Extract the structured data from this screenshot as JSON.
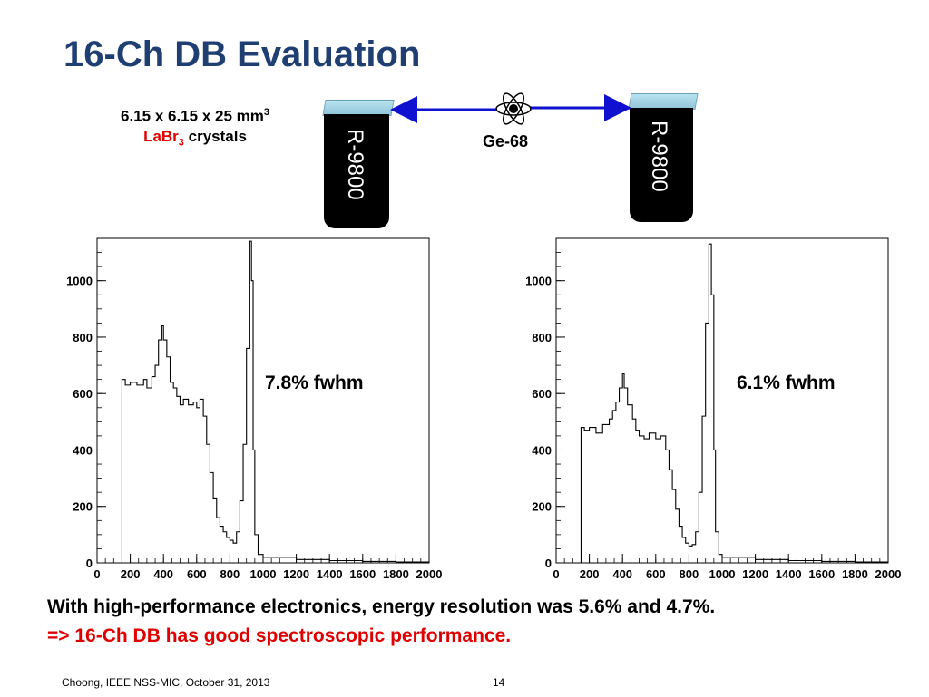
{
  "slide": {
    "title": "16-Ch DB Evaluation",
    "crystal_dims": "6.15 x 6.15 x 25 mm",
    "crystal_dims_sup": "3",
    "crystal_material": "LaBr",
    "crystal_material_sub": "3",
    "crystal_word": " crystals",
    "source_label": "Ge-68",
    "pmt_left_label": "R-9800",
    "pmt_right_label": "R-9800",
    "fwhm_left": "7.8% fwhm",
    "fwhm_right": "6.1% fwhm",
    "conclusion_line1": "With high-performance electronics, energy resolution was 5.6% and 4.7%.",
    "conclusion_line2": "=> 16-Ch DB has good spectroscopic performance.",
    "footer_text": "Choong, IEEE NSS-MIC, October 31, 2013",
    "page_number": "14",
    "colors": {
      "title": "#1f3f73",
      "accent_red": "#e00000",
      "arrow_blue": "#1010d0"
    },
    "icons": [
      "atom-icon",
      "double-arrow-icon"
    ]
  },
  "chart_data": [
    {
      "type": "histogram",
      "title": "",
      "xlabel": "",
      "ylabel": "",
      "xlim": [
        0,
        2000
      ],
      "ylim": [
        0,
        1150
      ],
      "xticks": [
        0,
        200,
        400,
        600,
        800,
        1000,
        1200,
        1400,
        1600,
        1800,
        2000
      ],
      "yticks": [
        0,
        200,
        400,
        600,
        800,
        1000
      ],
      "annotation": "7.8% fwhm",
      "points": [
        [
          0,
          0
        ],
        [
          150,
          0
        ],
        [
          150,
          650
        ],
        [
          170,
          630
        ],
        [
          200,
          640
        ],
        [
          240,
          630
        ],
        [
          280,
          650
        ],
        [
          300,
          620
        ],
        [
          330,
          660
        ],
        [
          350,
          700
        ],
        [
          370,
          790
        ],
        [
          390,
          840
        ],
        [
          400,
          790
        ],
        [
          420,
          730
        ],
        [
          440,
          640
        ],
        [
          460,
          620
        ],
        [
          480,
          590
        ],
        [
          500,
          560
        ],
        [
          520,
          580
        ],
        [
          550,
          560
        ],
        [
          580,
          570
        ],
        [
          600,
          550
        ],
        [
          620,
          580
        ],
        [
          640,
          520
        ],
        [
          660,
          420
        ],
        [
          680,
          320
        ],
        [
          700,
          230
        ],
        [
          720,
          160
        ],
        [
          740,
          130
        ],
        [
          760,
          110
        ],
        [
          780,
          90
        ],
        [
          800,
          80
        ],
        [
          820,
          70
        ],
        [
          840,
          110
        ],
        [
          860,
          220
        ],
        [
          880,
          420
        ],
        [
          900,
          760
        ],
        [
          920,
          1140
        ],
        [
          930,
          1000
        ],
        [
          940,
          400
        ],
        [
          950,
          100
        ],
        [
          970,
          30
        ],
        [
          1000,
          20
        ],
        [
          1200,
          12
        ],
        [
          1400,
          8
        ],
        [
          1600,
          5
        ],
        [
          1800,
          3
        ],
        [
          2000,
          2
        ]
      ]
    },
    {
      "type": "histogram",
      "title": "",
      "xlabel": "",
      "ylabel": "",
      "xlim": [
        0,
        2000
      ],
      "ylim": [
        0,
        1150
      ],
      "xticks": [
        0,
        200,
        400,
        600,
        800,
        1000,
        1200,
        1400,
        1600,
        1800,
        2000
      ],
      "yticks": [
        0,
        200,
        400,
        600,
        800,
        1000
      ],
      "annotation": "6.1% fwhm",
      "points": [
        [
          0,
          0
        ],
        [
          150,
          0
        ],
        [
          150,
          480
        ],
        [
          170,
          470
        ],
        [
          200,
          480
        ],
        [
          240,
          460
        ],
        [
          280,
          490
        ],
        [
          320,
          510
        ],
        [
          340,
          540
        ],
        [
          360,
          570
        ],
        [
          380,
          620
        ],
        [
          400,
          670
        ],
        [
          410,
          620
        ],
        [
          430,
          560
        ],
        [
          460,
          510
        ],
        [
          480,
          470
        ],
        [
          500,
          450
        ],
        [
          530,
          440
        ],
        [
          560,
          460
        ],
        [
          600,
          440
        ],
        [
          630,
          450
        ],
        [
          660,
          400
        ],
        [
          680,
          330
        ],
        [
          700,
          260
        ],
        [
          720,
          190
        ],
        [
          740,
          130
        ],
        [
          760,
          90
        ],
        [
          780,
          70
        ],
        [
          800,
          60
        ],
        [
          820,
          65
        ],
        [
          840,
          110
        ],
        [
          860,
          250
        ],
        [
          880,
          520
        ],
        [
          900,
          850
        ],
        [
          920,
          1130
        ],
        [
          935,
          950
        ],
        [
          950,
          400
        ],
        [
          960,
          110
        ],
        [
          980,
          30
        ],
        [
          1000,
          20
        ],
        [
          1200,
          12
        ],
        [
          1400,
          8
        ],
        [
          1600,
          5
        ],
        [
          1800,
          3
        ],
        [
          2000,
          2
        ]
      ]
    }
  ]
}
